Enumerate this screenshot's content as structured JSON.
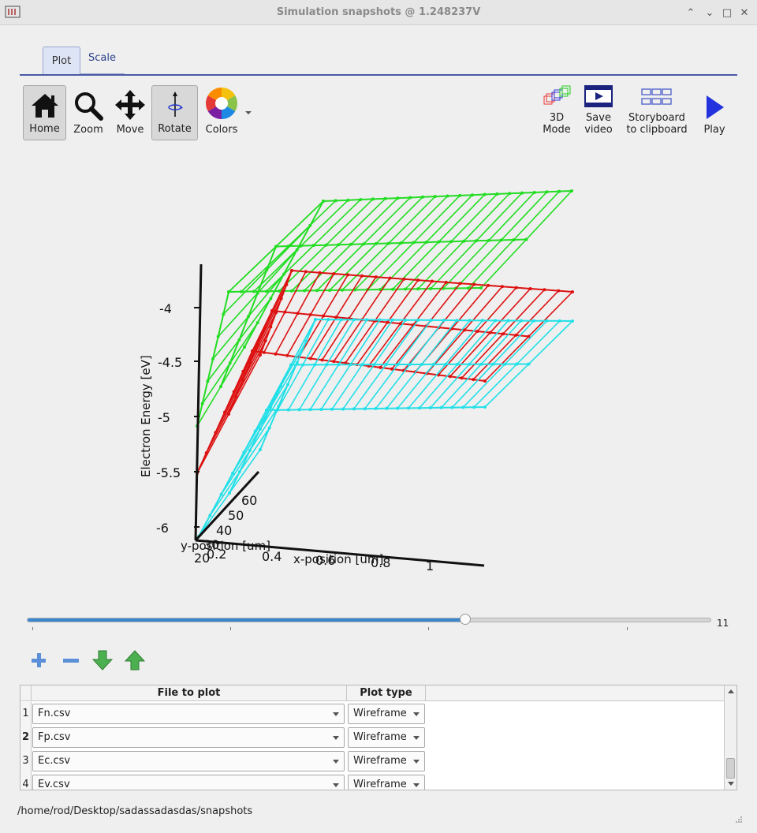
{
  "window": {
    "title": "Simulation snapshots @ 1.248237V"
  },
  "tabs": [
    {
      "label": "Plot"
    },
    {
      "label": "Scale"
    }
  ],
  "toolbar": {
    "home": "Home",
    "zoom": "Zoom",
    "move": "Move",
    "rotate": "Rotate",
    "colors": "Colors",
    "mode3d_l1": "3D",
    "mode3d_l2": "Mode",
    "save_l1": "Save",
    "save_l2": "video",
    "story_l1": "Storyboard",
    "story_l2": "to clipboard",
    "play": "Play"
  },
  "plot": {
    "zlabel": "Electron Energy [eV]",
    "ylabel": "y-position [um]",
    "xlabel": "x-position [um]",
    "z_ticks": [
      "-4",
      "-4.5",
      "-5",
      "-5.5",
      "-6"
    ],
    "y_ticks": [
      "60",
      "50",
      "40",
      "30",
      "20"
    ],
    "x_ticks": [
      "0.2",
      "0.4",
      "0.6",
      "0.8",
      "1"
    ]
  },
  "slider": {
    "value": "11",
    "fraction": 0.64
  },
  "table": {
    "headers": {
      "file": "File to plot",
      "type": "Plot type"
    },
    "rows": [
      {
        "num": "1",
        "file": "Fn.csv",
        "type": "Wireframe"
      },
      {
        "num": "2",
        "file": "Fp.csv",
        "type": "Wireframe"
      },
      {
        "num": "3",
        "file": "Ec.csv",
        "type": "Wireframe"
      },
      {
        "num": "4",
        "file": "Ev.csv",
        "type": "Wireframe"
      }
    ]
  },
  "status": {
    "path": "/home/rod/Desktop/sadassadasdas/snapshots"
  },
  "colors": {
    "green": "#22dd22",
    "red": "#dd1111",
    "cyan": "#22e0e8",
    "accent": "#3b86cf"
  }
}
